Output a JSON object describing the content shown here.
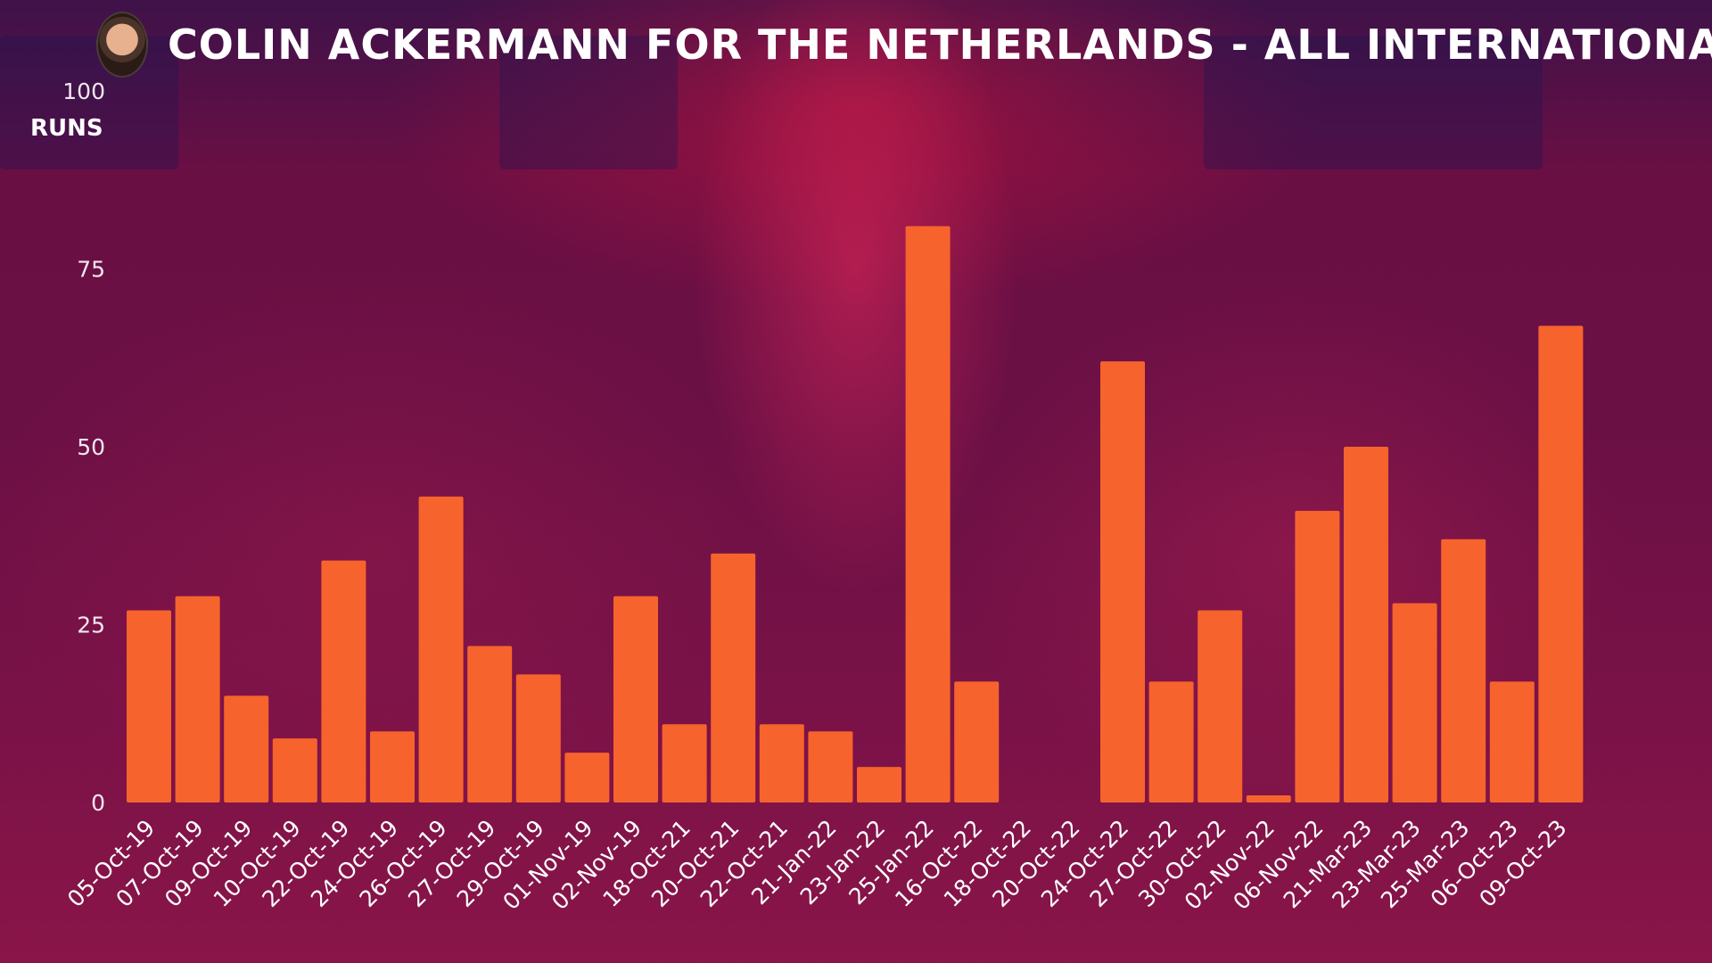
{
  "title": "COLIN ACKERMANN FOR THE NETHERLANDS - ALL INTERNATIONALS",
  "chart_data": {
    "type": "bar",
    "title": "COLIN ACKERMANN FOR THE NETHERLANDS - ALL INTERNATIONALS",
    "xlabel": "",
    "ylabel": "RUNS",
    "ylim": [
      0,
      100
    ],
    "yticks": [
      0,
      25,
      50,
      75,
      100
    ],
    "grid": false,
    "bar_color": "#f7632c",
    "categories": [
      "05-Oct-19",
      "07-Oct-19",
      "09-Oct-19",
      "10-Oct-19",
      "22-Oct-19",
      "24-Oct-19",
      "26-Oct-19",
      "27-Oct-19",
      "29-Oct-19",
      "01-Nov-19",
      "02-Nov-19",
      "18-Oct-21",
      "20-Oct-21",
      "22-Oct-21",
      "21-Jan-22",
      "23-Jan-22",
      "25-Jan-22",
      "16-Oct-22",
      "18-Oct-22",
      "20-Oct-22",
      "24-Oct-22",
      "27-Oct-22",
      "30-Oct-22",
      "02-Nov-22",
      "06-Nov-22",
      "21-Mar-23",
      "23-Mar-23",
      "25-Mar-23",
      "06-Oct-23",
      "09-Oct-23"
    ],
    "values": [
      27,
      29,
      15,
      9,
      34,
      10,
      43,
      22,
      18,
      7,
      29,
      11,
      35,
      11,
      10,
      5,
      81,
      17,
      0,
      0,
      62,
      17,
      27,
      1,
      41,
      50,
      28,
      37,
      17,
      67
    ]
  }
}
